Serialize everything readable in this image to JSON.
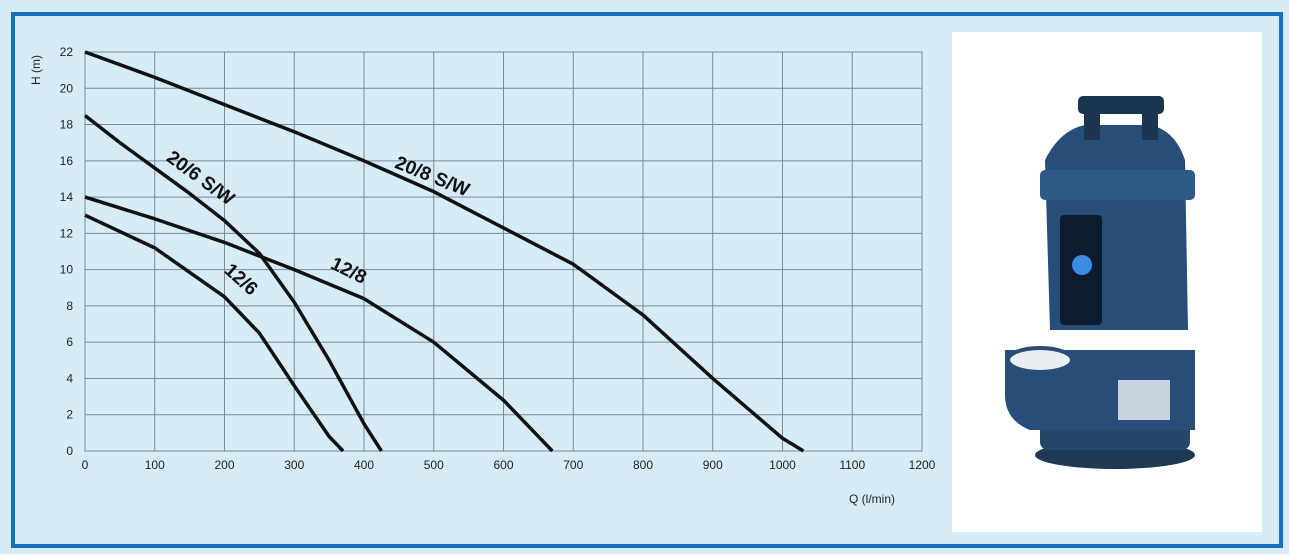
{
  "chart_data": {
    "type": "line",
    "xlabel": "Q (l/min)",
    "ylabel": "H (m)",
    "xlim": [
      0,
      1200
    ],
    "xticks": [
      0,
      100,
      200,
      300,
      400,
      500,
      600,
      700,
      800,
      900,
      1000,
      1100,
      1200
    ],
    "ylim": [
      0,
      22
    ],
    "yticks": [
      0,
      2,
      4,
      6,
      8,
      10,
      12,
      14,
      16,
      18,
      20,
      22
    ],
    "grid": true,
    "series": [
      {
        "name": "20/8 S/W",
        "color": "#111111",
        "x": [
          0,
          100,
          200,
          300,
          400,
          500,
          600,
          700,
          800,
          900,
          1000,
          1030
        ],
        "values": [
          22,
          20.6,
          19.1,
          17.6,
          16,
          14.3,
          12.3,
          10.3,
          7.5,
          4,
          0.7,
          0
        ]
      },
      {
        "name": "20/6 S/W",
        "color": "#111111",
        "x": [
          0,
          50,
          100,
          150,
          200,
          250,
          300,
          350,
          400,
          425
        ],
        "values": [
          18.5,
          17,
          15.6,
          14.2,
          12.7,
          10.9,
          8.2,
          5,
          1.5,
          0
        ]
      },
      {
        "name": "12/8",
        "color": "#111111",
        "x": [
          0,
          100,
          200,
          300,
          400,
          500,
          600,
          670
        ],
        "values": [
          14,
          12.8,
          11.5,
          10,
          8.4,
          6,
          2.8,
          0
        ]
      },
      {
        "name": "12/6",
        "color": "#111111",
        "x": [
          0,
          100,
          200,
          250,
          300,
          350,
          370
        ],
        "values": [
          13,
          11.2,
          8.5,
          6.5,
          3.6,
          0.8,
          0
        ]
      }
    ]
  }
}
